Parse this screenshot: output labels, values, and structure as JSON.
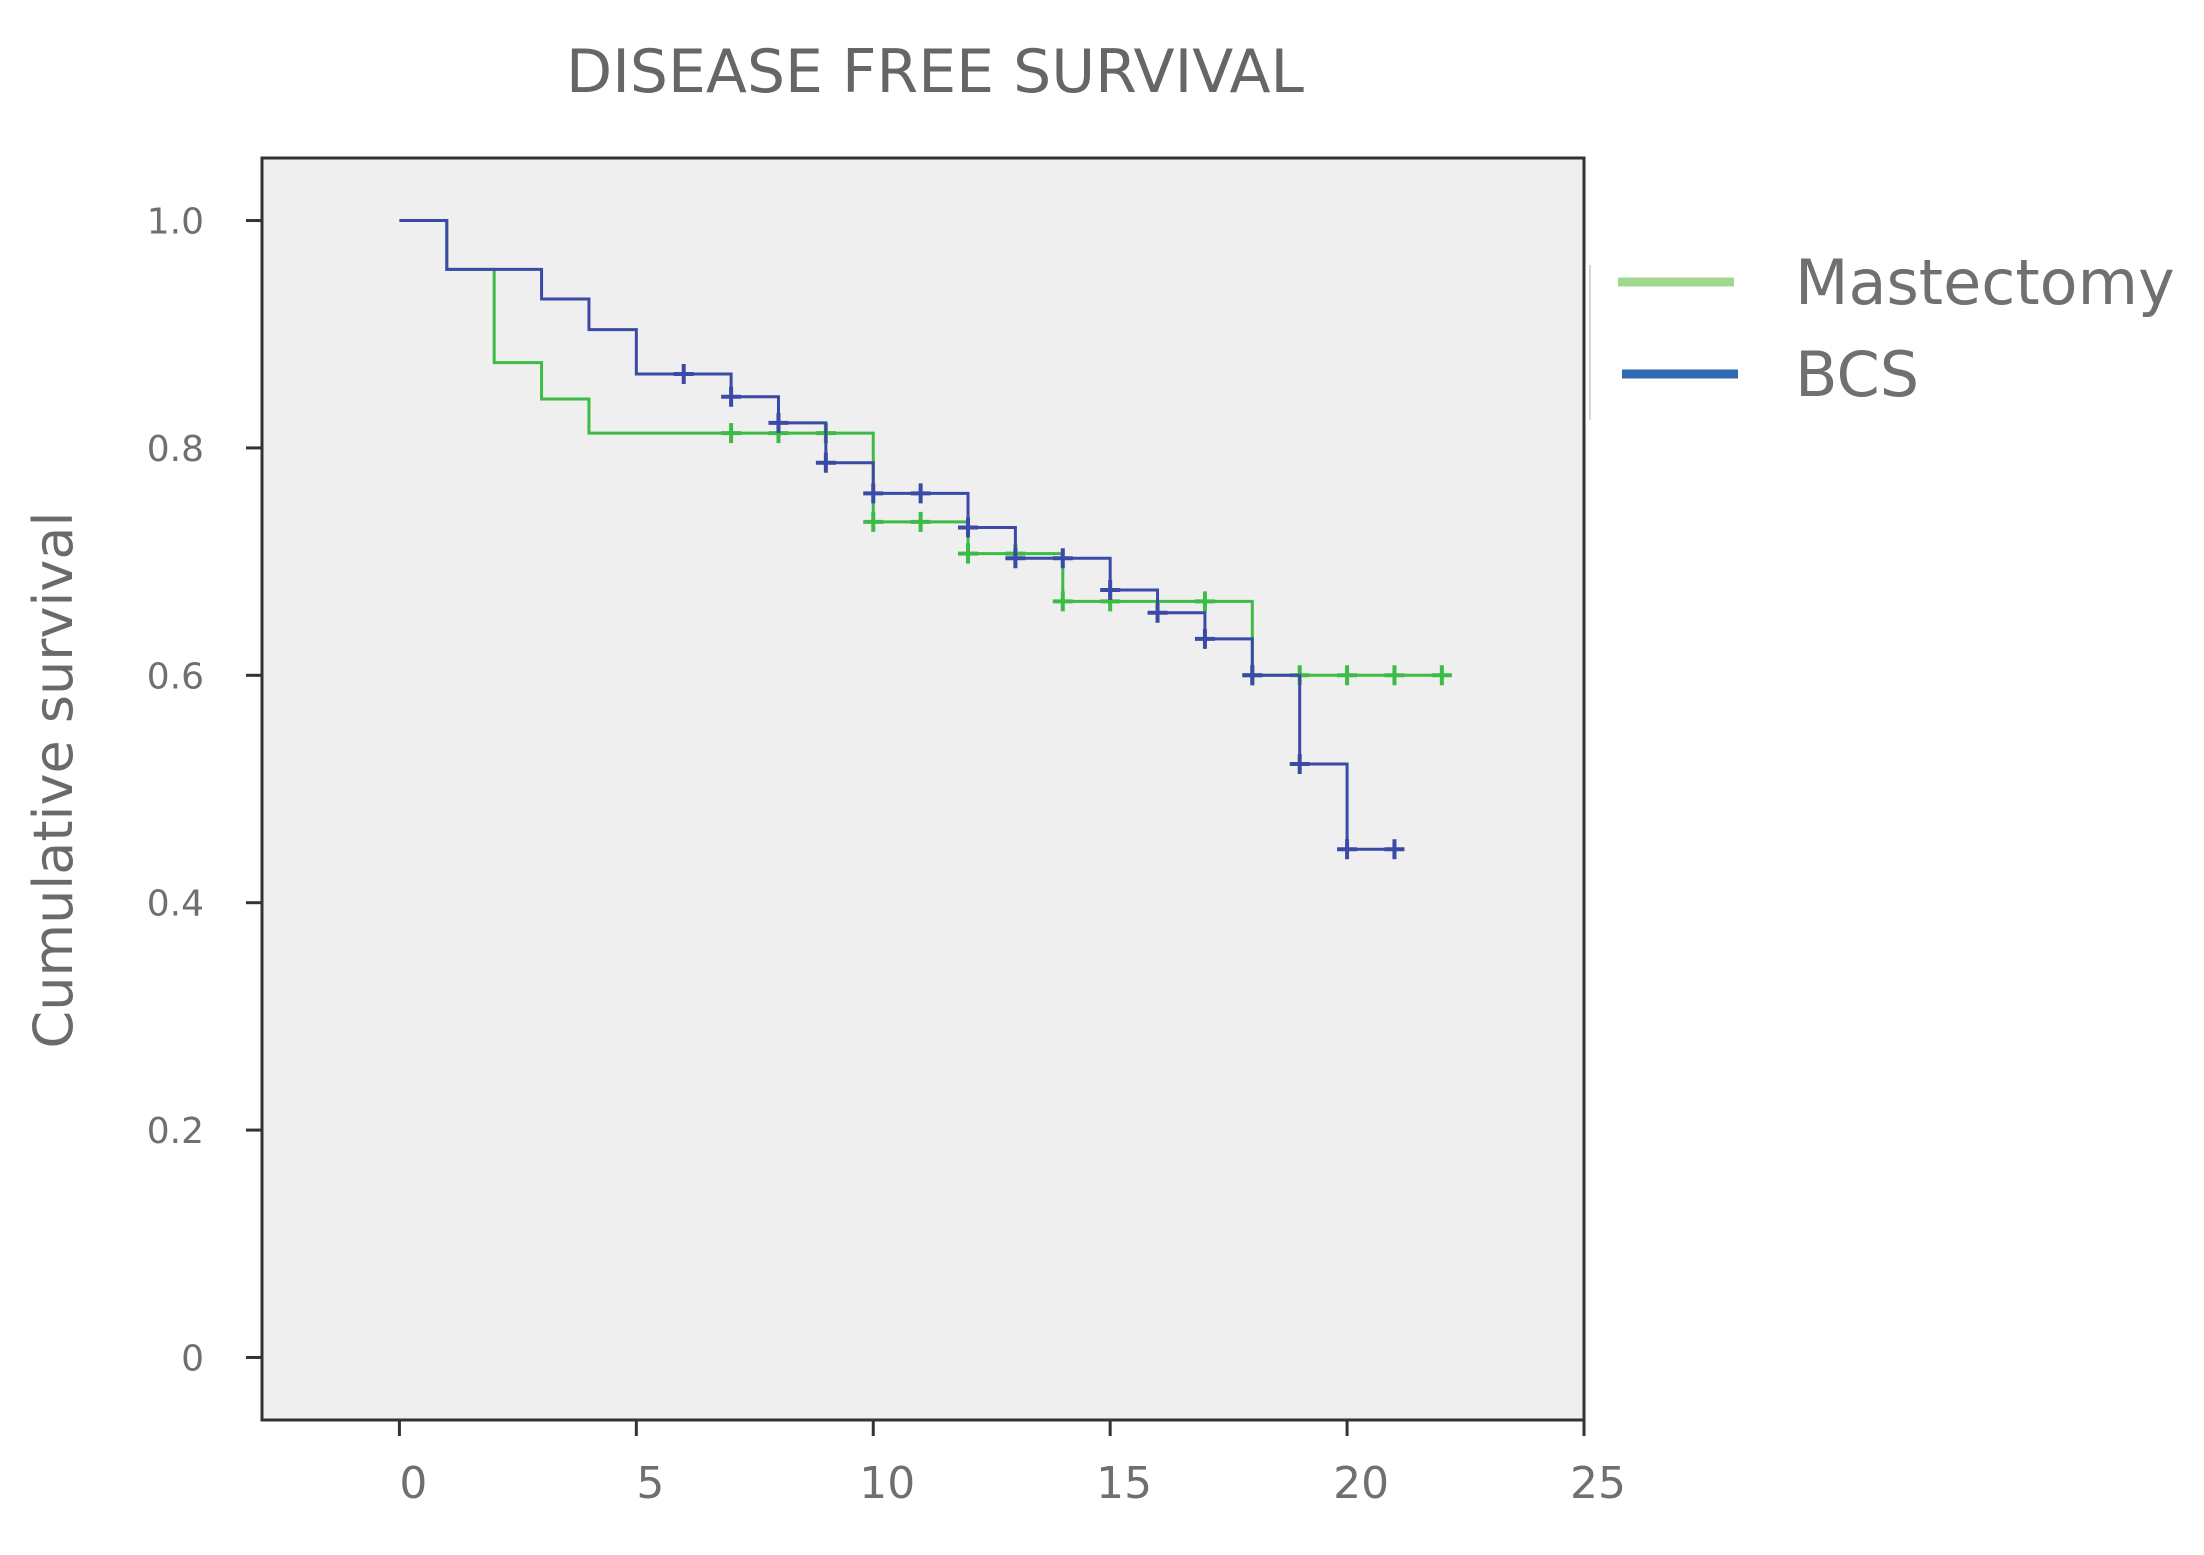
{
  "chart_data": {
    "type": "line",
    "subtype": "kaplan-meier-step",
    "title": "DISEASE FREE SURVIVAL",
    "xlabel": "",
    "ylabel": "Cumulative survival",
    "xlim": [
      -2.9,
      25
    ],
    "ylim": [
      -0.055,
      1.055
    ],
    "x_ticks": [
      0,
      5,
      10,
      15,
      20,
      25
    ],
    "y_ticks": [
      0,
      0.2,
      0.4,
      0.6,
      0.8,
      1.0
    ],
    "y_tick_labels": [
      "0",
      "0.2",
      "0.4",
      "0.6",
      "0.8",
      "1.0"
    ],
    "grid": false,
    "legend_position": "right",
    "plot_background": "#efefef",
    "series": [
      {
        "name": "Mastectomy",
        "color": "#3dbb45",
        "legend_color": "#9fd88f",
        "steps": [
          [
            0,
            1.0
          ],
          [
            1,
            0.957
          ],
          [
            2,
            0.875
          ],
          [
            3,
            0.843
          ],
          [
            4,
            0.813
          ],
          [
            10,
            0.735
          ],
          [
            12,
            0.707
          ],
          [
            14,
            0.665
          ],
          [
            18,
            0.6
          ]
        ],
        "end_x": 22,
        "censored": [
          [
            7,
            0.813
          ],
          [
            8,
            0.813
          ],
          [
            9,
            0.813
          ],
          [
            10,
            0.735
          ],
          [
            11,
            0.735
          ],
          [
            12,
            0.707
          ],
          [
            13,
            0.707
          ],
          [
            14,
            0.665
          ],
          [
            15,
            0.665
          ],
          [
            17,
            0.665
          ],
          [
            18,
            0.6
          ],
          [
            19,
            0.6
          ],
          [
            20,
            0.6
          ],
          [
            21,
            0.6
          ],
          [
            22,
            0.6
          ]
        ]
      },
      {
        "name": "BCS",
        "color": "#3a4aa6",
        "legend_color": "#2f6ab3",
        "steps": [
          [
            0,
            1.0
          ],
          [
            1,
            0.957
          ],
          [
            3,
            0.931
          ],
          [
            4,
            0.904
          ],
          [
            5,
            0.865
          ],
          [
            7,
            0.845
          ],
          [
            8,
            0.822
          ],
          [
            9,
            0.787
          ],
          [
            10,
            0.76
          ],
          [
            12,
            0.73
          ],
          [
            13,
            0.703
          ],
          [
            15,
            0.675
          ],
          [
            16,
            0.655
          ],
          [
            17,
            0.632
          ],
          [
            18,
            0.6
          ],
          [
            19,
            0.522
          ],
          [
            20,
            0.447
          ]
        ],
        "end_x": 21,
        "censored": [
          [
            6,
            0.865
          ],
          [
            7,
            0.845
          ],
          [
            8,
            0.822
          ],
          [
            9,
            0.787
          ],
          [
            10,
            0.76
          ],
          [
            11,
            0.76
          ],
          [
            12,
            0.73
          ],
          [
            13,
            0.703
          ],
          [
            14,
            0.703
          ],
          [
            15,
            0.675
          ],
          [
            16,
            0.655
          ],
          [
            17,
            0.632
          ],
          [
            18,
            0.6
          ],
          [
            19,
            0.522
          ],
          [
            20,
            0.447
          ],
          [
            21,
            0.447
          ]
        ]
      }
    ]
  }
}
